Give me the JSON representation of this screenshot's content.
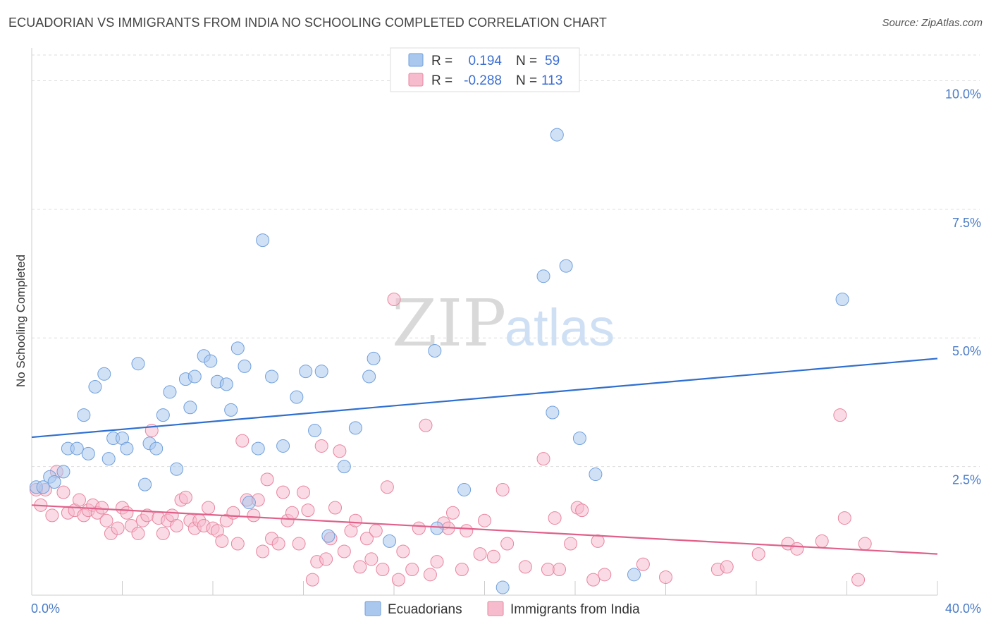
{
  "title": "ECUADORIAN VS IMMIGRANTS FROM INDIA NO SCHOOLING COMPLETED CORRELATION CHART",
  "source": "Source: ZipAtlas.com",
  "watermark": {
    "zip": "ZIP",
    "atlas": "atlas"
  },
  "colors": {
    "blue_fill": "#aac8ee",
    "blue_stroke": "#6f9fdc",
    "blue_line": "#2f6fcf",
    "pink_fill": "#f6bccd",
    "pink_stroke": "#e8859f",
    "pink_line": "#e0608a",
    "grid": "#dddddd",
    "tick_text": "#4a7cc7"
  },
  "stats": {
    "r_label": "R =",
    "n_label": "N =",
    "ecuadorians": {
      "r": "0.194",
      "n": "59"
    },
    "india": {
      "r": "-0.288",
      "n": "113"
    }
  },
  "legend": {
    "ecuadorians": "Ecuadorians",
    "india": "Immigrants from India"
  },
  "chart_data": {
    "type": "scatter",
    "title": "ECUADORIAN VS IMMIGRANTS FROM INDIA NO SCHOOLING COMPLETED CORRELATION CHART",
    "xlabel": "",
    "ylabel": "No Schooling Completed",
    "xlim": [
      0,
      40
    ],
    "ylim": [
      0,
      10.5
    ],
    "x_tick_labels": [
      "0.0%",
      "40.0%"
    ],
    "y_ticks": [
      2.5,
      5.0,
      7.5,
      10.0
    ],
    "y_tick_labels": [
      "2.5%",
      "5.0%",
      "7.5%",
      "10.0%"
    ],
    "grid": "horizontal dashed",
    "legend_position": "bottom-center",
    "series": [
      {
        "name": "Ecuadorians",
        "trend": {
          "x": [
            0,
            40
          ],
          "y": [
            3.07,
            4.6
          ]
        },
        "points": [
          [
            0.2,
            2.1
          ],
          [
            0.5,
            2.1
          ],
          [
            0.8,
            2.3
          ],
          [
            1.0,
            2.2
          ],
          [
            1.4,
            2.4
          ],
          [
            1.6,
            2.85
          ],
          [
            2.0,
            2.85
          ],
          [
            2.3,
            3.5
          ],
          [
            2.5,
            2.75
          ],
          [
            2.8,
            4.05
          ],
          [
            3.2,
            4.3
          ],
          [
            3.4,
            2.65
          ],
          [
            3.6,
            3.05
          ],
          [
            4.0,
            3.05
          ],
          [
            4.2,
            2.85
          ],
          [
            4.7,
            4.5
          ],
          [
            5.0,
            2.15
          ],
          [
            5.2,
            2.95
          ],
          [
            5.5,
            2.85
          ],
          [
            5.8,
            3.5
          ],
          [
            6.1,
            3.95
          ],
          [
            6.4,
            2.45
          ],
          [
            6.8,
            4.2
          ],
          [
            7.0,
            3.65
          ],
          [
            7.2,
            4.25
          ],
          [
            7.6,
            4.65
          ],
          [
            7.9,
            4.55
          ],
          [
            8.2,
            4.15
          ],
          [
            8.6,
            4.1
          ],
          [
            8.8,
            3.6
          ],
          [
            9.1,
            4.8
          ],
          [
            9.4,
            4.45
          ],
          [
            9.6,
            1.8
          ],
          [
            10.0,
            2.85
          ],
          [
            10.2,
            6.9
          ],
          [
            10.6,
            4.25
          ],
          [
            11.1,
            2.9
          ],
          [
            11.7,
            3.85
          ],
          [
            12.1,
            4.35
          ],
          [
            12.5,
            3.2
          ],
          [
            12.8,
            4.35
          ],
          [
            13.1,
            1.15
          ],
          [
            13.8,
            2.5
          ],
          [
            14.3,
            3.25
          ],
          [
            14.9,
            4.25
          ],
          [
            15.1,
            4.6
          ],
          [
            15.8,
            1.05
          ],
          [
            17.8,
            4.75
          ],
          [
            17.9,
            1.3
          ],
          [
            19.1,
            2.05
          ],
          [
            20.8,
            0.15
          ],
          [
            22.6,
            6.2
          ],
          [
            23.0,
            3.55
          ],
          [
            23.2,
            8.95
          ],
          [
            23.6,
            6.4
          ],
          [
            24.2,
            3.05
          ],
          [
            24.9,
            2.35
          ],
          [
            26.6,
            0.4
          ],
          [
            35.8,
            5.75
          ]
        ]
      },
      {
        "name": "Immigrants from India",
        "trend": {
          "x": [
            0,
            40
          ],
          "y": [
            1.75,
            0.8
          ]
        },
        "points": [
          [
            0.2,
            2.05
          ],
          [
            0.4,
            1.75
          ],
          [
            0.6,
            2.05
          ],
          [
            0.9,
            1.55
          ],
          [
            1.1,
            2.4
          ],
          [
            1.4,
            2.0
          ],
          [
            1.6,
            1.6
          ],
          [
            1.9,
            1.65
          ],
          [
            2.1,
            1.85
          ],
          [
            2.3,
            1.55
          ],
          [
            2.5,
            1.65
          ],
          [
            2.7,
            1.75
          ],
          [
            2.9,
            1.6
          ],
          [
            3.1,
            1.7
          ],
          [
            3.3,
            1.45
          ],
          [
            3.5,
            1.2
          ],
          [
            3.8,
            1.3
          ],
          [
            4.0,
            1.7
          ],
          [
            4.2,
            1.6
          ],
          [
            4.4,
            1.35
          ],
          [
            4.7,
            1.2
          ],
          [
            4.9,
            1.45
          ],
          [
            5.1,
            1.55
          ],
          [
            5.3,
            3.2
          ],
          [
            5.6,
            1.5
          ],
          [
            5.8,
            1.2
          ],
          [
            6.0,
            1.45
          ],
          [
            6.2,
            1.55
          ],
          [
            6.4,
            1.35
          ],
          [
            6.6,
            1.85
          ],
          [
            6.8,
            1.9
          ],
          [
            7.0,
            1.45
          ],
          [
            7.2,
            1.3
          ],
          [
            7.4,
            1.45
          ],
          [
            7.6,
            1.35
          ],
          [
            7.8,
            1.7
          ],
          [
            8.0,
            1.3
          ],
          [
            8.2,
            1.25
          ],
          [
            8.4,
            1.05
          ],
          [
            8.6,
            1.45
          ],
          [
            8.9,
            1.6
          ],
          [
            9.1,
            1.0
          ],
          [
            9.3,
            3.0
          ],
          [
            9.5,
            1.85
          ],
          [
            9.8,
            1.55
          ],
          [
            10.0,
            1.85
          ],
          [
            10.2,
            0.85
          ],
          [
            10.4,
            2.25
          ],
          [
            10.6,
            1.1
          ],
          [
            10.9,
            1.0
          ],
          [
            11.1,
            2.0
          ],
          [
            11.3,
            1.45
          ],
          [
            11.5,
            1.6
          ],
          [
            11.8,
            1.0
          ],
          [
            12.0,
            2.0
          ],
          [
            12.2,
            1.65
          ],
          [
            12.4,
            0.3
          ],
          [
            12.6,
            0.65
          ],
          [
            12.8,
            2.9
          ],
          [
            13.0,
            0.7
          ],
          [
            13.2,
            1.1
          ],
          [
            13.4,
            1.7
          ],
          [
            13.6,
            2.8
          ],
          [
            13.8,
            0.85
          ],
          [
            14.1,
            1.25
          ],
          [
            14.3,
            1.45
          ],
          [
            14.5,
            0.55
          ],
          [
            14.8,
            1.1
          ],
          [
            15.0,
            0.7
          ],
          [
            15.2,
            1.25
          ],
          [
            15.5,
            0.5
          ],
          [
            15.7,
            2.1
          ],
          [
            16.0,
            5.75
          ],
          [
            16.2,
            0.3
          ],
          [
            16.4,
            0.85
          ],
          [
            16.8,
            0.5
          ],
          [
            17.1,
            1.3
          ],
          [
            17.4,
            3.3
          ],
          [
            17.6,
            0.4
          ],
          [
            17.9,
            0.65
          ],
          [
            18.2,
            1.4
          ],
          [
            18.4,
            1.3
          ],
          [
            18.6,
            1.6
          ],
          [
            19.0,
            0.5
          ],
          [
            19.2,
            1.25
          ],
          [
            19.8,
            0.8
          ],
          [
            20.0,
            1.45
          ],
          [
            20.4,
            0.75
          ],
          [
            20.8,
            2.05
          ],
          [
            21.0,
            1.0
          ],
          [
            21.8,
            0.55
          ],
          [
            22.6,
            2.65
          ],
          [
            22.8,
            0.5
          ],
          [
            23.1,
            1.5
          ],
          [
            23.3,
            0.5
          ],
          [
            23.8,
            1.0
          ],
          [
            24.1,
            1.7
          ],
          [
            24.3,
            1.65
          ],
          [
            24.8,
            0.3
          ],
          [
            25.0,
            1.05
          ],
          [
            25.3,
            0.4
          ],
          [
            27.0,
            0.6
          ],
          [
            28.0,
            0.35
          ],
          [
            30.3,
            0.5
          ],
          [
            30.7,
            0.55
          ],
          [
            32.1,
            0.8
          ],
          [
            33.4,
            1.0
          ],
          [
            33.8,
            0.9
          ],
          [
            34.9,
            1.05
          ],
          [
            35.7,
            3.5
          ],
          [
            35.9,
            1.5
          ],
          [
            36.5,
            0.3
          ],
          [
            36.8,
            1.0
          ]
        ]
      }
    ]
  }
}
